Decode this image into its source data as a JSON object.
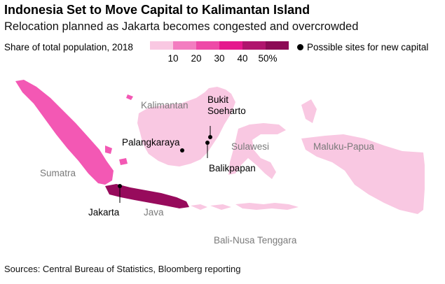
{
  "title": "Indonesia Set to Move Capital to Kalimantan Island",
  "subtitle": "Relocation planned as Jakarta becomes congested and overcrowded",
  "legend": {
    "label": "Share of total population, 2018",
    "swatch_colors": [
      "#f9c8e2",
      "#f37dc0",
      "#ee4aa7",
      "#e5198d",
      "#b0156d",
      "#8c0b55"
    ],
    "ticks": [
      "10",
      "20",
      "30",
      "40",
      "50%"
    ],
    "sites_label": "Possible sites for new capital"
  },
  "regions": {
    "sumatra": {
      "name": "Sumatra",
      "color": "#f358b4"
    },
    "java": {
      "name": "Java",
      "color": "#970b5c"
    },
    "kalimantan": {
      "name": "Kalimantan",
      "color": "#f9c8e2"
    },
    "sulawesi": {
      "name": "Sulawesi",
      "color": "#f9c8e2"
    },
    "maluku_papua": {
      "name": "Maluku-Papua",
      "color": "#f9c8e2"
    },
    "bali_nusa": {
      "name": "Bali-Nusa Tenggara",
      "color": "#f9c8e2"
    }
  },
  "places": {
    "bukit": "Bukit\nSoeharto",
    "palangkaraya": "Palangkaraya",
    "balikpapan": "Balikpapan",
    "jakarta": "Jakarta"
  },
  "source": "Sources: Central Bureau of Statistics, Bloomberg reporting"
}
